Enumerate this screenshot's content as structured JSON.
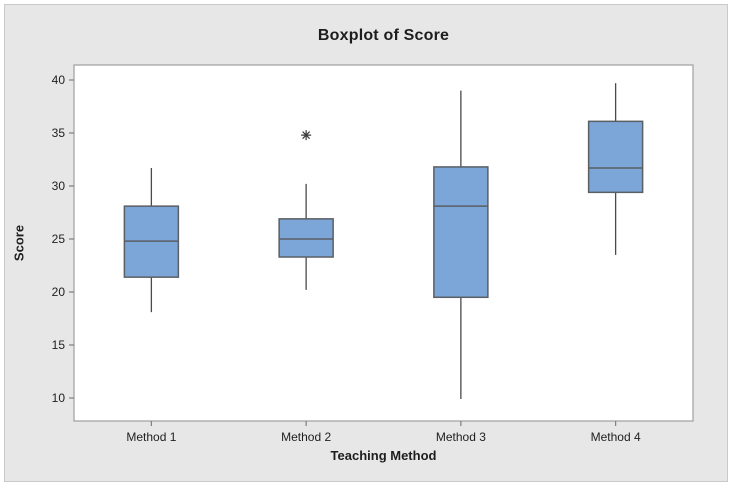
{
  "window": {
    "page_background": "#ffffff",
    "panel_background": "#e7e7e7",
    "panel_border": "#c9c9c9"
  },
  "chart_data": {
    "type": "boxplot",
    "title": "Boxplot of Score",
    "xlabel": "Teaching Method",
    "ylabel": "Score",
    "categories": [
      "Method 1",
      "Method 2",
      "Method 3",
      "Method 4"
    ],
    "yticks": [
      10,
      15,
      20,
      25,
      30,
      35,
      40
    ],
    "ylim": [
      7.8,
      41.4
    ],
    "grid": false,
    "legend": "none",
    "series": [
      {
        "category": "Method 1",
        "whisker_low": 18.1,
        "q1": 21.4,
        "median": 24.8,
        "q3": 28.1,
        "whisker_high": 31.7,
        "outliers": []
      },
      {
        "category": "Method 2",
        "whisker_low": 20.2,
        "q1": 23.3,
        "median": 25.0,
        "q3": 26.9,
        "whisker_high": 30.2,
        "outliers": [
          34.8
        ]
      },
      {
        "category": "Method 3",
        "whisker_low": 9.9,
        "q1": 19.5,
        "median": 28.1,
        "q3": 31.8,
        "whisker_high": 39.0,
        "outliers": []
      },
      {
        "category": "Method 4",
        "whisker_low": 23.5,
        "q1": 29.4,
        "median": 31.7,
        "q3": 36.1,
        "whisker_high": 39.7,
        "outliers": []
      }
    ],
    "colors": {
      "box_fill": "#7CA5D8",
      "box_border": "#5A5F64",
      "median_line": "#5A5F64",
      "whisker": "#4A4A4A",
      "outlier_symbol": "#3B3B3B",
      "plot_background": "#ffffff",
      "plot_frame": "#A6A6A6",
      "tick_mark": "#7E7E7E",
      "tick_label_text": "#1E1E1E",
      "title_text": "#1D1D1D"
    }
  }
}
